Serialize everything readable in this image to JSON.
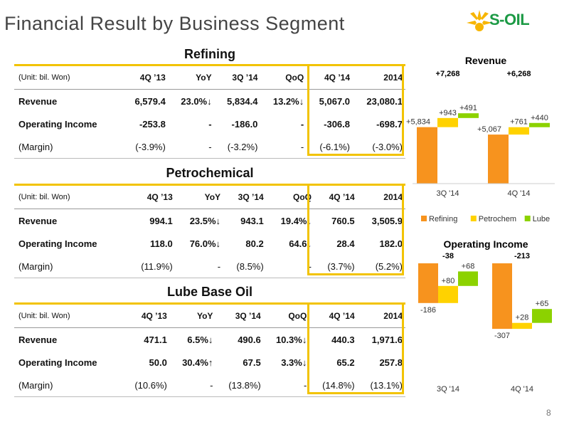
{
  "page": {
    "title": "Financial Result by Business Segment",
    "page_number": "8"
  },
  "logo": {
    "text": "S-OIL"
  },
  "columns": [
    "(Unit: bil. Won)",
    "4Q ’13",
    "YoY",
    "3Q ’14",
    "QoQ",
    "4Q ’14",
    "2014"
  ],
  "sections": [
    {
      "title": "Refining",
      "rows": [
        {
          "label": "Revenue",
          "cells": [
            "6,579.4",
            "23.0%↓",
            "5,834.4",
            "13.2%↓",
            "5,067.0",
            "23,080.1"
          ]
        },
        {
          "label": "Operating Income",
          "cells": [
            "-253.8",
            "-",
            "-186.0",
            "-",
            "-306.8",
            "-698.7"
          ]
        },
        {
          "label": "(Margin)",
          "cells": [
            "(-3.9%)",
            "-",
            "(-3.2%)",
            "-",
            "(-6.1%)",
            "(-3.0%)"
          ]
        }
      ]
    },
    {
      "title": "Petrochemical",
      "rows": [
        {
          "label": "Revenue",
          "cells": [
            "994.1",
            "23.5%↓",
            "943.1",
            "19.4%↓",
            "760.5",
            "3,505.9"
          ]
        },
        {
          "label": "Operating Income",
          "cells": [
            "118.0",
            "76.0%↓",
            "80.2",
            "64.6↓",
            "28.4",
            "182.0"
          ]
        },
        {
          "label": "(Margin)",
          "cells": [
            "(11.9%)",
            "-",
            "(8.5%)",
            "-",
            "(3.7%)",
            "(5.2%)"
          ]
        }
      ]
    },
    {
      "title": "Lube Base Oil",
      "rows": [
        {
          "label": "Revenue",
          "cells": [
            "471.1",
            "6.5%↓",
            "490.6",
            "10.3%↓",
            "440.3",
            "1,971.6"
          ]
        },
        {
          "label": "Operating Income",
          "cells": [
            "50.0",
            "30.4%↑",
            "67.5",
            "3.3%↓",
            "65.2",
            "257.8"
          ]
        },
        {
          "label": "(Margin)",
          "cells": [
            "(10.6%)",
            "-",
            "(13.8%)",
            "-",
            "(14.8%)",
            "(13.1%)"
          ]
        }
      ]
    }
  ],
  "colors": {
    "refining": "#f7931e",
    "petrochem": "#ffd200",
    "lube": "#8cd200",
    "highlight": "#f2c300"
  },
  "chart_data": [
    {
      "type": "bar",
      "title": "Revenue",
      "categories": [
        "3Q '14",
        "4Q '14"
      ],
      "totals": [
        "+7,268",
        "+6,268"
      ],
      "series": [
        {
          "name": "Refining",
          "values": [
            5834,
            5067
          ],
          "labels": [
            "+5,834",
            "+5,067"
          ]
        },
        {
          "name": "Petrochem",
          "values": [
            943,
            761
          ],
          "labels": [
            "+943",
            "+761"
          ]
        },
        {
          "name": "Lube",
          "values": [
            491,
            440
          ],
          "labels": [
            "+491",
            "+440"
          ]
        }
      ],
      "legend": "bottom"
    },
    {
      "type": "bar",
      "title": "Operating Income",
      "categories": [
        "3Q '14",
        "4Q '14"
      ],
      "totals": [
        "-38",
        "-213"
      ],
      "series": [
        {
          "name": "Refining",
          "values": [
            -186,
            -307
          ],
          "labels": [
            "-186",
            "-307"
          ]
        },
        {
          "name": "Petrochem",
          "values": [
            80,
            28
          ],
          "labels": [
            "+80",
            "+28"
          ]
        },
        {
          "name": "Lube",
          "values": [
            68,
            65
          ],
          "labels": [
            "+68",
            "+65"
          ]
        }
      ]
    }
  ]
}
